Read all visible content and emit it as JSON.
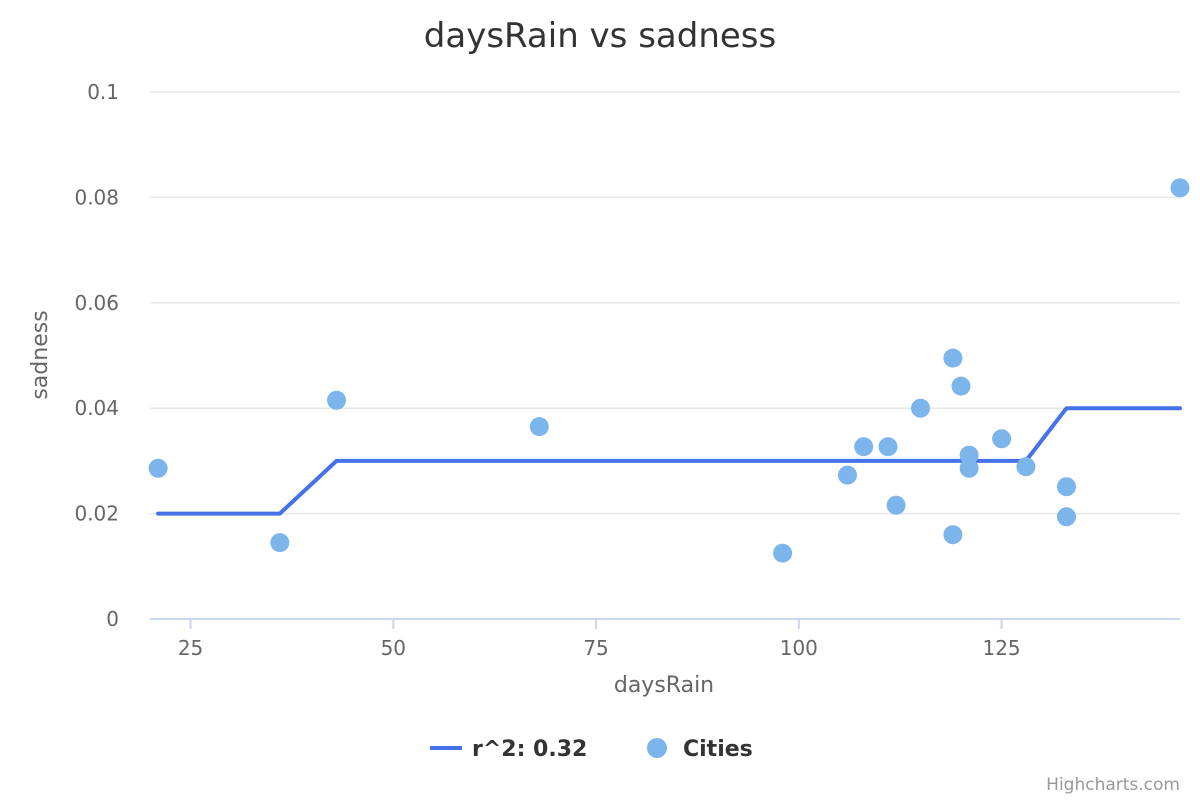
{
  "chart_data": {
    "type": "scatter",
    "title": "daysRain vs sadness",
    "xlabel": "daysRain",
    "ylabel": "sadness",
    "xlim": [
      20,
      147
    ],
    "ylim": [
      0,
      0.1
    ],
    "x_ticks": [
      "25",
      "50",
      "75",
      "100",
      "125"
    ],
    "x_tick_values": [
      25,
      50,
      75,
      100,
      125
    ],
    "y_ticks": [
      "0",
      "0.02",
      "0.04",
      "0.06",
      "0.08",
      "0.1"
    ],
    "y_tick_values": [
      0,
      0.02,
      0.04,
      0.06,
      0.08,
      0.1
    ],
    "grid": true,
    "legend_position": "bottom-center",
    "series": [
      {
        "name": "r^2: 0.32",
        "kind": "line",
        "color": "#4572e8",
        "points": [
          [
            21,
            0.02
          ],
          [
            36,
            0.02
          ],
          [
            43,
            0.03
          ],
          [
            128,
            0.03
          ],
          [
            133,
            0.04
          ],
          [
            147,
            0.04
          ]
        ]
      },
      {
        "name": "Cities",
        "kind": "scatter",
        "color": "#7cb5ec",
        "points": [
          [
            21,
            0.0286
          ],
          [
            36,
            0.0145
          ],
          [
            43,
            0.0415
          ],
          [
            68,
            0.0365
          ],
          [
            98,
            0.0125
          ],
          [
            106,
            0.0273
          ],
          [
            108,
            0.0327
          ],
          [
            111,
            0.0327
          ],
          [
            112,
            0.0216
          ],
          [
            115,
            0.04
          ],
          [
            119,
            0.0495
          ],
          [
            119,
            0.016
          ],
          [
            120,
            0.0442
          ],
          [
            121,
            0.0311
          ],
          [
            121,
            0.0286
          ],
          [
            125,
            0.0342
          ],
          [
            128,
            0.0289
          ],
          [
            133,
            0.0251
          ],
          [
            133,
            0.0194
          ],
          [
            147,
            0.0818
          ]
        ]
      }
    ]
  },
  "credits": "Highcharts.com"
}
